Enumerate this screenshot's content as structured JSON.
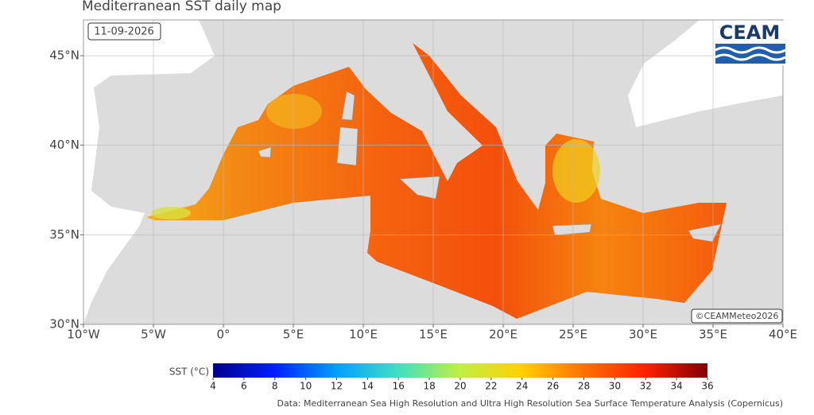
{
  "header": {
    "title": "Mediterranean SST daily map",
    "date": "11-09-2026"
  },
  "map": {
    "logo": "CEAM",
    "credit": "©CEAMMeteo2026",
    "xlim": [
      -10,
      40
    ],
    "ylim": [
      30,
      47
    ],
    "xticks": [
      {
        "value": -10,
        "label": "10°W"
      },
      {
        "value": -5,
        "label": "5°W"
      },
      {
        "value": 0,
        "label": "0°"
      },
      {
        "value": 5,
        "label": "5°E"
      },
      {
        "value": 10,
        "label": "10°E"
      },
      {
        "value": 15,
        "label": "15°E"
      },
      {
        "value": 20,
        "label": "20°E"
      },
      {
        "value": 25,
        "label": "25°E"
      },
      {
        "value": 30,
        "label": "30°E"
      },
      {
        "value": 35,
        "label": "35°E"
      },
      {
        "value": 40,
        "label": "40°E"
      }
    ],
    "yticks": [
      {
        "value": 30,
        "label": "30°N"
      },
      {
        "value": 35,
        "label": "35°N"
      },
      {
        "value": 40,
        "label": "40°N"
      },
      {
        "value": 45,
        "label": "45°N"
      }
    ],
    "grid": true
  },
  "colorbar": {
    "label": "SST (°C)",
    "range": [
      4,
      36
    ],
    "ticks": [
      4,
      6,
      8,
      10,
      12,
      14,
      16,
      18,
      20,
      22,
      24,
      26,
      28,
      30,
      32,
      34,
      36
    ],
    "colors": [
      "#00008f",
      "#0020ff",
      "#00a0ff",
      "#40e0c0",
      "#c0f040",
      "#ffd000",
      "#ff7000",
      "#ff2000",
      "#800000"
    ]
  },
  "source": "Data: Mediterranean Sea High Resolution and Ultra High Resolution Sea Surface Temperature Analysis (Copernicus)"
}
